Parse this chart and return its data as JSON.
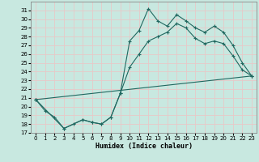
{
  "xlabel": "Humidex (Indice chaleur)",
  "xlim": [
    -0.5,
    23.5
  ],
  "ylim": [
    17,
    32
  ],
  "yticks": [
    17,
    18,
    19,
    20,
    21,
    22,
    23,
    24,
    25,
    26,
    27,
    28,
    29,
    30,
    31
  ],
  "xticks": [
    0,
    1,
    2,
    3,
    4,
    5,
    6,
    7,
    8,
    9,
    10,
    11,
    12,
    13,
    14,
    15,
    16,
    17,
    18,
    19,
    20,
    21,
    22,
    23
  ],
  "bg_color": "#c8e8e0",
  "grid_color": "#e8c8c8",
  "line_color": "#206860",
  "line1_x": [
    0,
    1,
    2,
    3,
    4,
    5,
    6,
    7,
    8,
    9,
    10,
    11,
    12,
    13,
    14,
    15,
    16,
    17,
    18,
    19,
    20,
    21,
    22,
    23
  ],
  "line1_y": [
    20.8,
    19.5,
    18.8,
    17.5,
    18.0,
    18.5,
    18.2,
    18.0,
    18.8,
    21.5,
    27.5,
    28.7,
    31.2,
    29.8,
    29.2,
    30.5,
    29.8,
    29.0,
    28.5,
    29.2,
    28.5,
    27.0,
    25.0,
    23.5
  ],
  "line2_x": [
    0,
    3,
    5,
    6,
    7,
    8,
    9,
    10,
    11,
    12,
    13,
    14,
    15,
    16,
    17,
    18,
    19,
    20,
    21,
    22,
    23
  ],
  "line2_y": [
    20.8,
    17.5,
    18.5,
    18.2,
    18.0,
    18.8,
    21.5,
    24.5,
    26.0,
    27.5,
    28.0,
    28.5,
    29.5,
    29.0,
    27.8,
    27.2,
    27.5,
    27.2,
    25.8,
    24.2,
    23.5
  ],
  "line3_x": [
    0,
    23
  ],
  "line3_y": [
    20.8,
    23.5
  ]
}
